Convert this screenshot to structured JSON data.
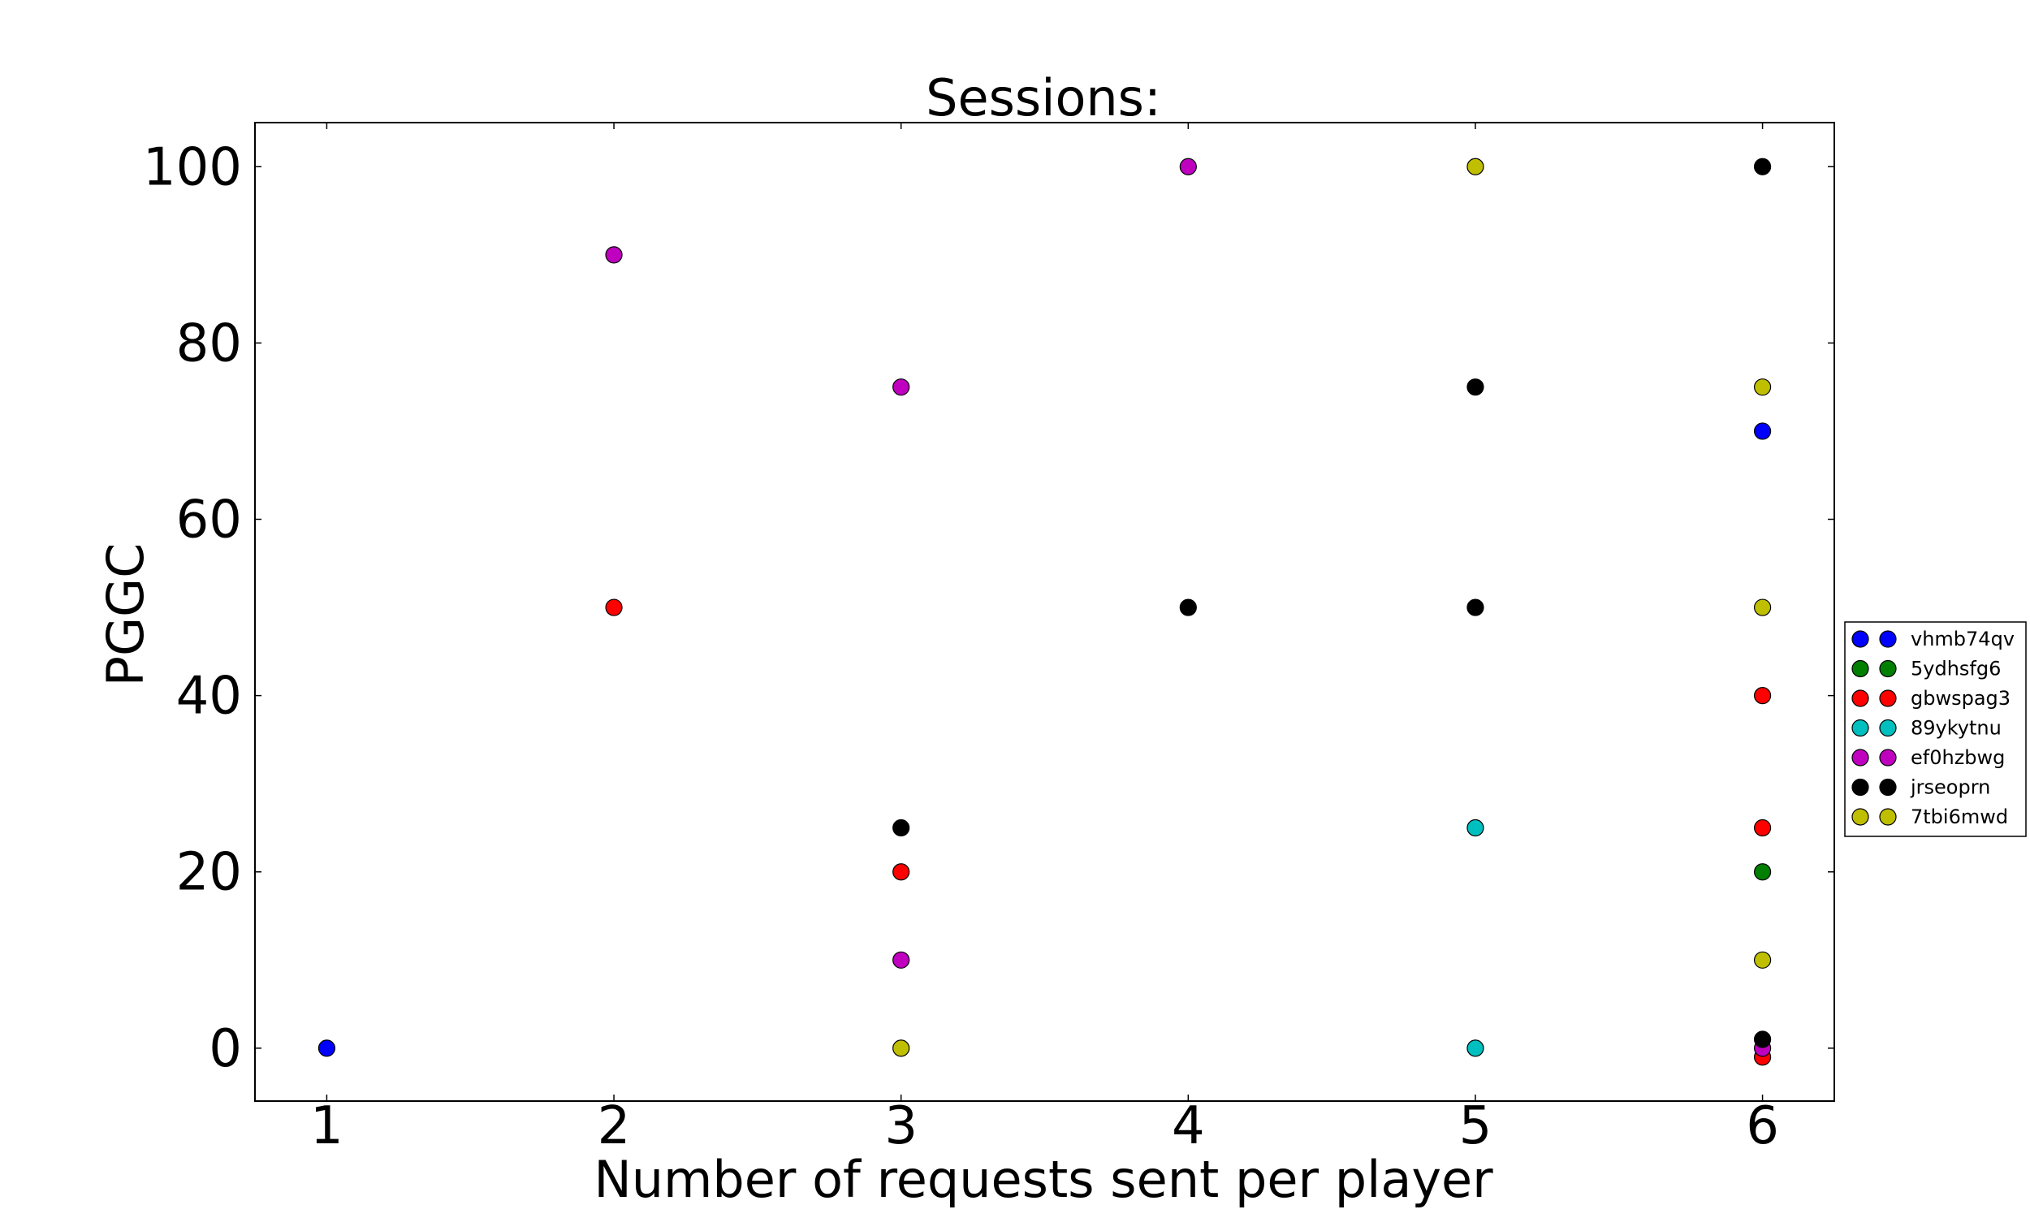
{
  "chart_data": {
    "type": "scatter",
    "title": "Sessions:",
    "xlabel": "Number of requests sent per player",
    "ylabel": "PGGC",
    "xlim": [
      0.75,
      6.25
    ],
    "ylim": [
      -6,
      105
    ],
    "xticks": [
      1,
      2,
      3,
      4,
      5,
      6
    ],
    "yticks": [
      0,
      20,
      40,
      60,
      80,
      100
    ],
    "grid": false,
    "legend_position": "right",
    "series": [
      {
        "name": "vhmb74qv",
        "color": "#0000ff",
        "points": [
          [
            1,
            0
          ],
          [
            6,
            70
          ]
        ]
      },
      {
        "name": "5ydhsfg6",
        "color": "#007f00",
        "points": [
          [
            6,
            20
          ]
        ]
      },
      {
        "name": "gbwspag3",
        "color": "#ff0000",
        "points": [
          [
            2,
            50
          ],
          [
            3,
            20
          ],
          [
            6,
            40
          ],
          [
            6,
            25
          ],
          [
            6,
            -1
          ]
        ]
      },
      {
        "name": "89ykytnu",
        "color": "#00bfbf",
        "points": [
          [
            5,
            25
          ],
          [
            5,
            0
          ]
        ]
      },
      {
        "name": "ef0hzbwg",
        "color": "#bf00bf",
        "points": [
          [
            2,
            90
          ],
          [
            3,
            75
          ],
          [
            3,
            10
          ],
          [
            4,
            100
          ],
          [
            6,
            0
          ]
        ]
      },
      {
        "name": "jrseoprn",
        "color": "#000000",
        "points": [
          [
            3,
            25
          ],
          [
            4,
            50
          ],
          [
            5,
            75
          ],
          [
            5,
            50
          ],
          [
            6,
            100
          ],
          [
            6,
            1
          ]
        ]
      },
      {
        "name": "7tbi6mwd",
        "color": "#bfbf00",
        "points": [
          [
            3,
            0
          ],
          [
            5,
            100
          ],
          [
            6,
            75
          ],
          [
            6,
            50
          ],
          [
            6,
            10
          ]
        ]
      }
    ]
  }
}
